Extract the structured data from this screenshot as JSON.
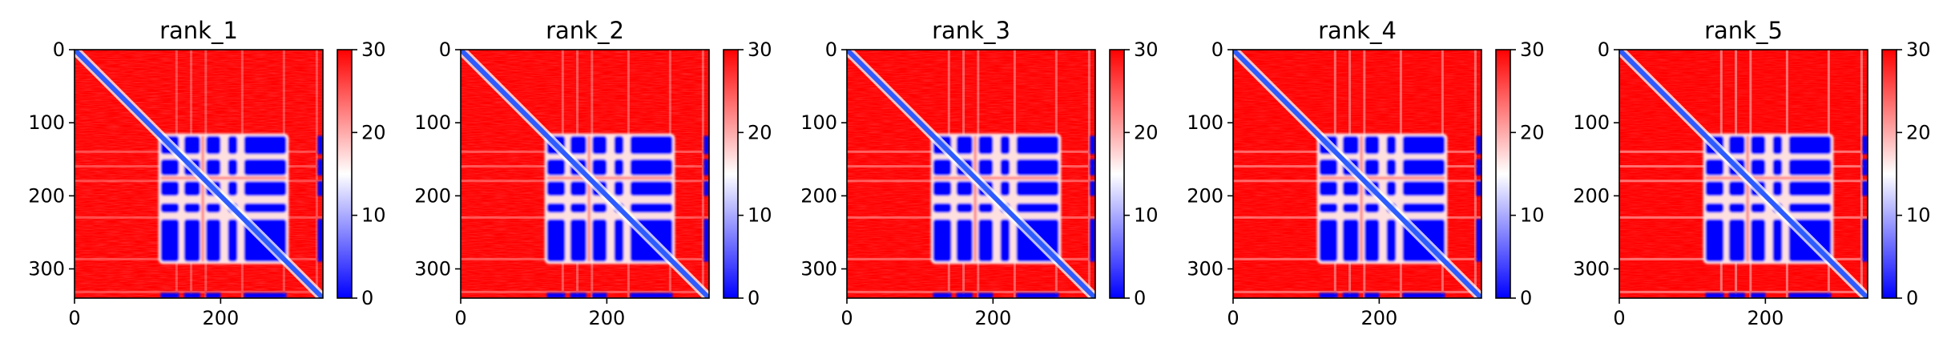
{
  "colors": {
    "low": "#0000ff",
    "mid": "#ffffff",
    "high": "#ff0000",
    "diagonal": "#2d5bff"
  },
  "chart_data": [
    {
      "type": "heatmap",
      "title": "rank_1",
      "xticks": [
        0,
        200
      ],
      "yticks": [
        0,
        100,
        200,
        300
      ],
      "xlim": [
        0,
        340
      ],
      "ylim": [
        340,
        0
      ],
      "colorbar": {
        "ticks": [
          0,
          10,
          20,
          30
        ],
        "range": [
          0,
          30
        ],
        "colormap": "bwr"
      },
      "low_distance_blocks": [
        [
          120,
          290
        ],
        [
          230,
          290
        ]
      ],
      "gaps": [
        145,
        175,
        205,
        225,
        230
      ],
      "variant": 0
    },
    {
      "type": "heatmap",
      "title": "rank_2",
      "xticks": [
        0,
        200
      ],
      "yticks": [
        0,
        100,
        200,
        300
      ],
      "xlim": [
        0,
        340
      ],
      "ylim": [
        340,
        0
      ],
      "colorbar": {
        "ticks": [
          0,
          10,
          20,
          30
        ],
        "range": [
          0,
          30
        ],
        "colormap": "bwr"
      },
      "low_distance_blocks": [
        [
          120,
          290
        ],
        [
          230,
          290
        ]
      ],
      "gaps": [
        145,
        175,
        205,
        225,
        230
      ],
      "variant": 1
    },
    {
      "type": "heatmap",
      "title": "rank_3",
      "xticks": [
        0,
        200
      ],
      "yticks": [
        0,
        100,
        200,
        300
      ],
      "xlim": [
        0,
        340
      ],
      "ylim": [
        340,
        0
      ],
      "colorbar": {
        "ticks": [
          0,
          10,
          20,
          30
        ],
        "range": [
          0,
          30
        ],
        "colormap": "bwr"
      },
      "low_distance_blocks": [
        [
          120,
          290
        ],
        [
          230,
          290
        ]
      ],
      "gaps": [
        145,
        175,
        205,
        225,
        230
      ],
      "variant": 2
    },
    {
      "type": "heatmap",
      "title": "rank_4",
      "xticks": [
        0,
        200
      ],
      "yticks": [
        0,
        100,
        200,
        300
      ],
      "xlim": [
        0,
        340
      ],
      "ylim": [
        340,
        0
      ],
      "colorbar": {
        "ticks": [
          0,
          10,
          20,
          30
        ],
        "range": [
          0,
          30
        ],
        "colormap": "bwr"
      },
      "low_distance_blocks": [
        [
          120,
          290
        ],
        [
          230,
          290
        ]
      ],
      "gaps": [
        145,
        175,
        205,
        225,
        230
      ],
      "variant": 3
    },
    {
      "type": "heatmap",
      "title": "rank_5",
      "xticks": [
        0,
        200
      ],
      "yticks": [
        0,
        100,
        200,
        300
      ],
      "xlim": [
        0,
        340
      ],
      "ylim": [
        340,
        0
      ],
      "colorbar": {
        "ticks": [
          0,
          10,
          20,
          30
        ],
        "range": [
          0,
          30
        ],
        "colormap": "bwr"
      },
      "low_distance_blocks": [
        [
          120,
          290
        ],
        [
          230,
          290
        ]
      ],
      "gaps": [
        145,
        175,
        205,
        225,
        230
      ],
      "variant": 4
    }
  ]
}
